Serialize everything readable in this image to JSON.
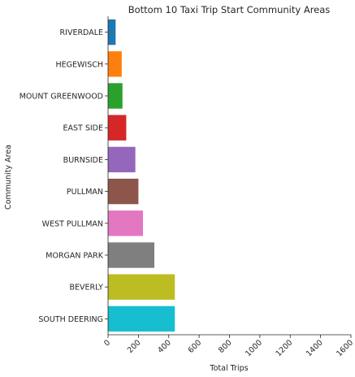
{
  "chart_data": {
    "type": "bar",
    "orientation": "horizontal",
    "title": "Bottom 10 Taxi Trip Start Community Areas",
    "xlabel": "Total Trips",
    "ylabel": "Community Area",
    "categories": [
      "RIVERDALE",
      "HEGEWISCH",
      "MOUNT GREENWOOD",
      "EAST SIDE",
      "BURNSIDE",
      "PULLMAN",
      "WEST PULLMAN",
      "MORGAN PARK",
      "BEVERLY",
      "SOUTH DEERING"
    ],
    "values": [
      50,
      90,
      95,
      120,
      180,
      200,
      230,
      305,
      440,
      440
    ],
    "colors": [
      "#1f77b4",
      "#ff7f0e",
      "#2ca02c",
      "#d62728",
      "#9467bd",
      "#8c564b",
      "#e377c2",
      "#7f7f7f",
      "#bcbd22",
      "#17becf"
    ],
    "xlim": [
      0,
      1600
    ],
    "xticks": [
      "0",
      "200",
      "400",
      "600",
      "800",
      "1000",
      "1200",
      "1400",
      "1600"
    ],
    "grid": false
  }
}
